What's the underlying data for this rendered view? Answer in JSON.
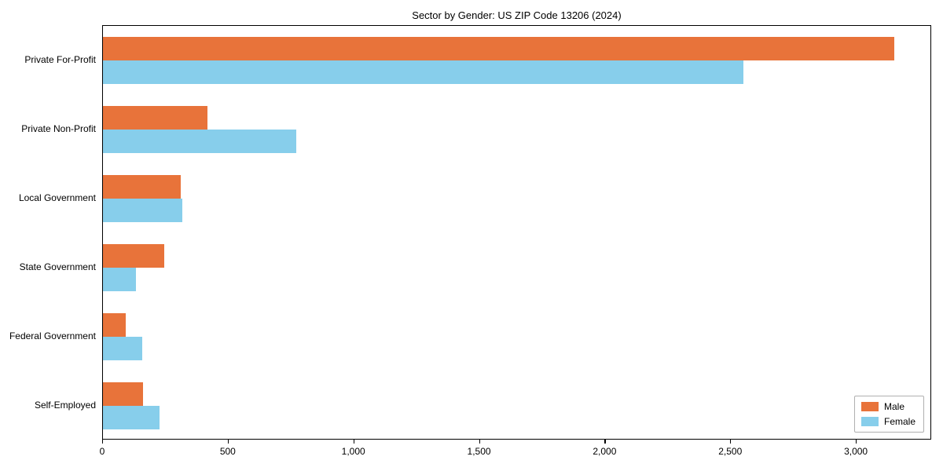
{
  "chart_data": {
    "type": "bar",
    "orientation": "horizontal",
    "title": "Sector by Gender: US ZIP Code 13206 (2024)",
    "categories": [
      "Private For-Profit",
      "Private Non-Profit",
      "Local Government",
      "State Government",
      "Federal Government",
      "Self-Employed"
    ],
    "series": [
      {
        "name": "Male",
        "color": "#e8733a",
        "values": [
          3150,
          415,
          310,
          245,
          90,
          160
        ]
      },
      {
        "name": "Female",
        "color": "#87ceeb",
        "values": [
          2550,
          770,
          315,
          130,
          155,
          225
        ]
      }
    ],
    "xlabel": "",
    "ylabel": "",
    "xlim": [
      0,
      3300
    ],
    "xticks": [
      0,
      500,
      1000,
      1500,
      2000,
      2500,
      3000
    ],
    "xtick_labels": [
      "0",
      "500",
      "1,000",
      "1,500",
      "2,000",
      "2,500",
      "3,000"
    ],
    "legend_position": "lower right",
    "grid": false
  }
}
